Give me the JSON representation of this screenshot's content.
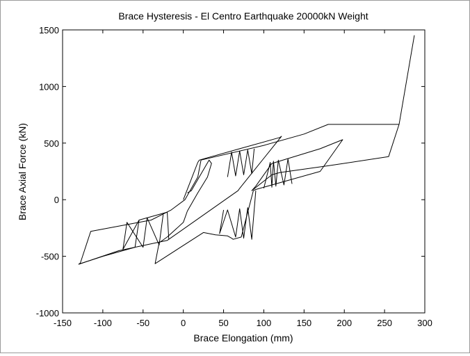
{
  "chart_data": {
    "type": "line",
    "title": "Brace Hysteresis - El Centro Earthquake 20000kN Weight",
    "xlabel": "Brace Elongation (mm)",
    "ylabel": "Brace Axial Force (kN)",
    "xlim": [
      -150,
      300
    ],
    "ylim": [
      -1000,
      1500
    ],
    "xticks": [
      -150,
      -100,
      -50,
      0,
      50,
      100,
      150,
      200,
      250,
      300
    ],
    "yticks": [
      -1000,
      -500,
      0,
      500,
      1000,
      1500
    ],
    "grid": false,
    "color": "#000000",
    "series": [
      {
        "values_note": "",
        "x": [
          0,
          18,
          20,
          70,
          120,
          122,
          70,
          68,
          -18,
          -20,
          -80,
          -130,
          -128,
          -115,
          -40,
          -15,
          2,
          18,
          22,
          100,
          150,
          180,
          268,
          287,
          268,
          255,
          180,
          120,
          110,
          85,
          90,
          110,
          170,
          198,
          197,
          170,
          90,
          87,
          72,
          62,
          60,
          55,
          40,
          25,
          -35,
          -30,
          -20,
          0,
          5,
          18,
          30,
          35,
          32,
          10,
          5
        ],
        "y": [
          0,
          330,
          350,
          450,
          550,
          560,
          100,
          80,
          -350,
          -360,
          -450,
          -570,
          -560,
          -280,
          -180,
          -90,
          0,
          200,
          350,
          480,
          580,
          665,
          665,
          1450,
          665,
          380,
          300,
          240,
          220,
          80,
          120,
          320,
          450,
          530,
          520,
          250,
          90,
          80,
          -330,
          -350,
          -340,
          -320,
          -310,
          -290,
          -565,
          -380,
          -330,
          -200,
          -100,
          60,
          200,
          320,
          350,
          80,
          60
        ]
      },
      {
        "x": [
          -130,
          -100,
          -80,
          -60,
          -55,
          -40,
          -20,
          -18
        ],
        "y": [
          -570,
          -500,
          -460,
          -420,
          -180,
          -150,
          -110,
          -350
        ]
      },
      {
        "x": [
          -55,
          -75,
          -70,
          -50,
          -45,
          -30,
          -25
        ],
        "y": [
          -180,
          -440,
          -200,
          -420,
          -160,
          -400,
          -130
        ]
      },
      {
        "x": [
          50,
          45,
          55,
          65,
          70,
          75,
          80,
          85,
          90
        ],
        "y": [
          -90,
          -300,
          -90,
          -330,
          -80,
          -340,
          -70,
          -350,
          80
        ]
      },
      {
        "x": [
          100,
          108,
          110,
          112,
          115,
          118,
          125,
          130,
          135
        ],
        "y": [
          100,
          330,
          110,
          340,
          120,
          350,
          130,
          360,
          140
        ]
      },
      {
        "x": [
          55,
          60,
          65,
          70,
          75,
          80,
          85,
          88
        ],
        "y": [
          200,
          420,
          210,
          430,
          220,
          440,
          230,
          450
        ]
      }
    ]
  }
}
